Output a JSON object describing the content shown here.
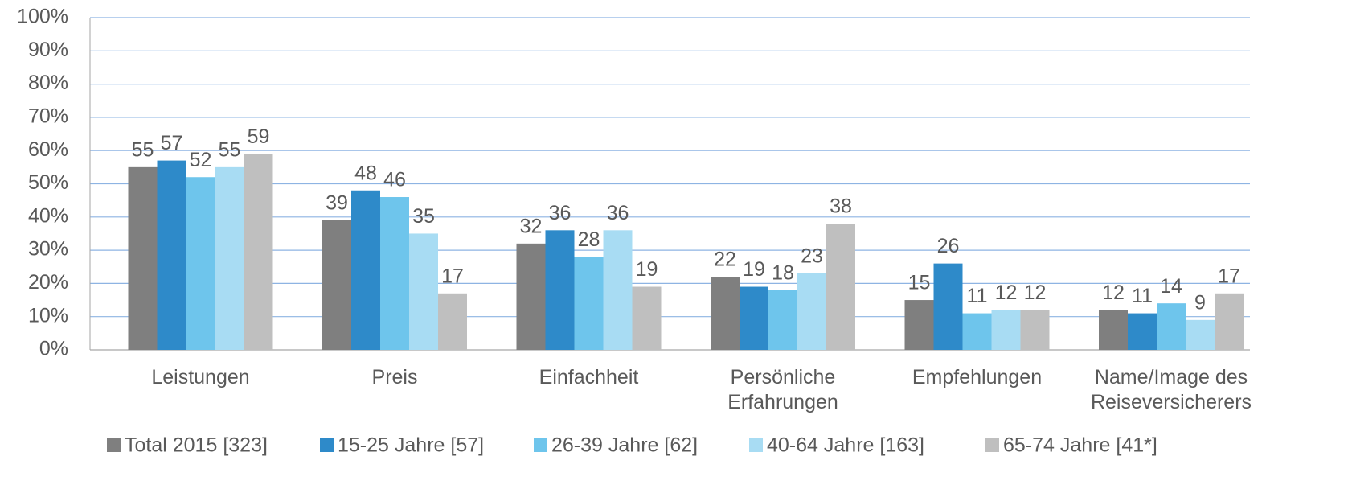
{
  "chart_data": {
    "type": "bar",
    "categories": [
      "Leistungen",
      "Preis",
      "Einfachheit",
      "Persönliche Erfahrungen",
      "Empfehlungen",
      "Name/Image des Reiseversicherers"
    ],
    "series": [
      {
        "name": "Total 2015 [323]",
        "color": "#7f7f7f",
        "values": [
          55,
          39,
          32,
          22,
          15,
          12
        ]
      },
      {
        "name": "15-25 Jahre [57]",
        "color": "#2e8ac9",
        "values": [
          57,
          48,
          36,
          19,
          26,
          11
        ]
      },
      {
        "name": "26-39 Jahre [62]",
        "color": "#6ec5ec",
        "values": [
          52,
          46,
          28,
          18,
          11,
          14
        ]
      },
      {
        "name": "40-64 Jahre [163]",
        "color": "#a8dcf3",
        "values": [
          55,
          35,
          36,
          23,
          12,
          9
        ]
      },
      {
        "name": "65-74 Jahre [41*]",
        "color": "#bfbfbf",
        "values": [
          59,
          17,
          19,
          38,
          12,
          17
        ]
      }
    ],
    "ylim": [
      0,
      100
    ],
    "yticks": [
      {
        "value": 0,
        "label": "0%"
      },
      {
        "value": 10,
        "label": "10%"
      },
      {
        "value": 20,
        "label": "20%"
      },
      {
        "value": 30,
        "label": "30%"
      },
      {
        "value": 40,
        "label": "40%"
      },
      {
        "value": 50,
        "label": "50%"
      },
      {
        "value": 60,
        "label": "60%"
      },
      {
        "value": 70,
        "label": "70%"
      },
      {
        "value": 80,
        "label": "80%"
      },
      {
        "value": 90,
        "label": "90%"
      },
      {
        "value": 100,
        "label": "100%"
      }
    ],
    "grid": true,
    "legend": "bottom"
  }
}
